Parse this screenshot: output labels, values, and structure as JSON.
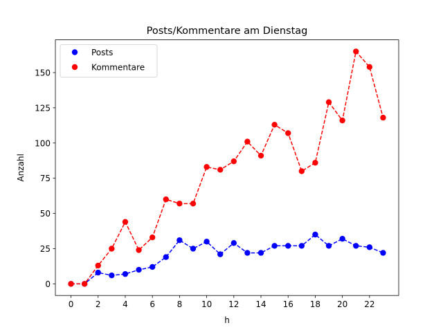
{
  "chart_data": {
    "type": "line",
    "title": "Posts/Kommentare am Dienstag",
    "xlabel": "h",
    "ylabel": "Anzahl",
    "x": [
      0,
      1,
      2,
      3,
      4,
      5,
      6,
      7,
      8,
      9,
      10,
      11,
      12,
      13,
      14,
      15,
      16,
      17,
      18,
      19,
      20,
      21,
      22,
      23
    ],
    "xlim": [
      -1.15,
      24.15
    ],
    "ylim": [
      -8.25,
      173.25
    ],
    "xticks": [
      0,
      2,
      4,
      6,
      8,
      10,
      12,
      14,
      16,
      18,
      20,
      22
    ],
    "yticks": [
      0,
      25,
      50,
      75,
      100,
      125,
      150
    ],
    "grid": false,
    "legend_position": "top-left",
    "series": [
      {
        "name": "Posts",
        "color": "#0000ff",
        "linestyle": "dashed",
        "marker": "circle",
        "values": [
          0,
          0,
          8,
          6,
          7,
          10,
          12,
          19,
          31,
          25,
          30,
          21,
          29,
          22,
          22,
          27,
          27,
          27,
          35,
          27,
          32,
          27,
          26,
          22
        ]
      },
      {
        "name": "Kommentare",
        "color": "#ff0000",
        "linestyle": "dashed",
        "marker": "circle",
        "values": [
          0,
          0,
          13,
          25,
          44,
          24,
          33,
          60,
          57,
          57,
          83,
          81,
          87,
          101,
          91,
          113,
          107,
          80,
          86,
          129,
          116,
          165,
          154,
          118
        ]
      }
    ]
  }
}
